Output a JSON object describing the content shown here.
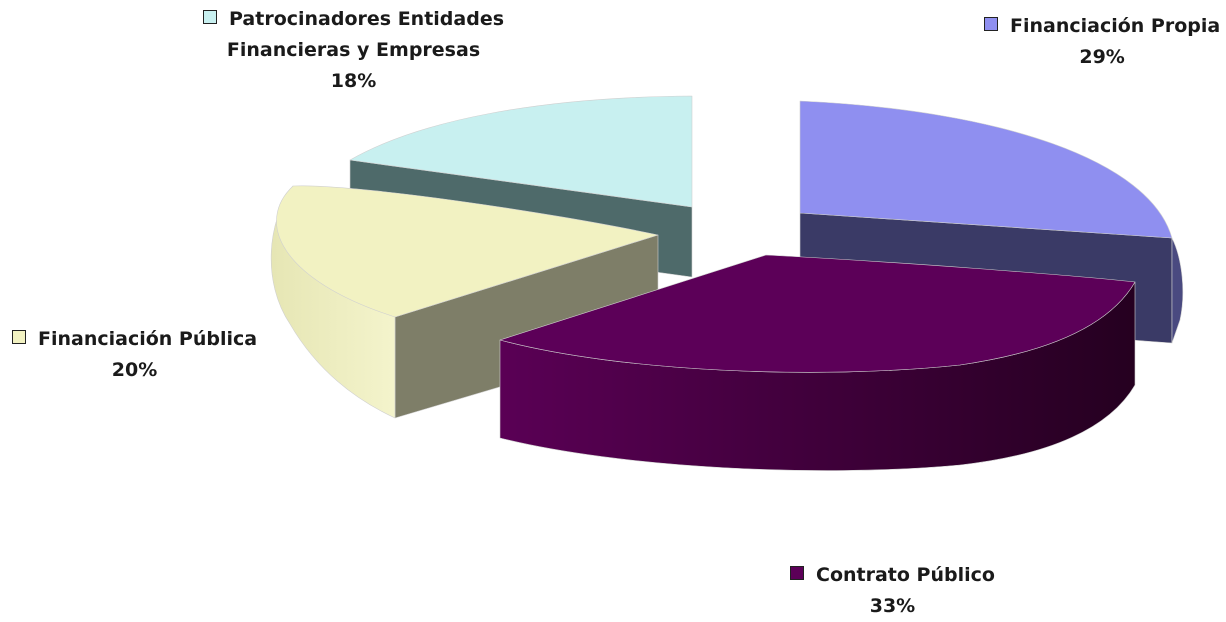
{
  "chart_data": {
    "type": "pie",
    "slices": [
      {
        "name": "Financiación Propia",
        "value": 29,
        "label": "29%",
        "color": "#8f8ff0"
      },
      {
        "name": "Contrato Público",
        "value": 33,
        "label": "33%",
        "color": "#5c0058"
      },
      {
        "name": "Financiación Pública",
        "value": 20,
        "label": "20%",
        "color": "#f2f2c2"
      },
      {
        "name": "Patrocinadores Entidades Financieras y Empresas",
        "label_line1": "Patrocinadores Entidades",
        "label_line2": "Financieras y Empresas",
        "value": 18,
        "label": "18%",
        "color": "#c8f0f0"
      }
    ],
    "exploded": true,
    "three_d": true,
    "legend": "none"
  }
}
